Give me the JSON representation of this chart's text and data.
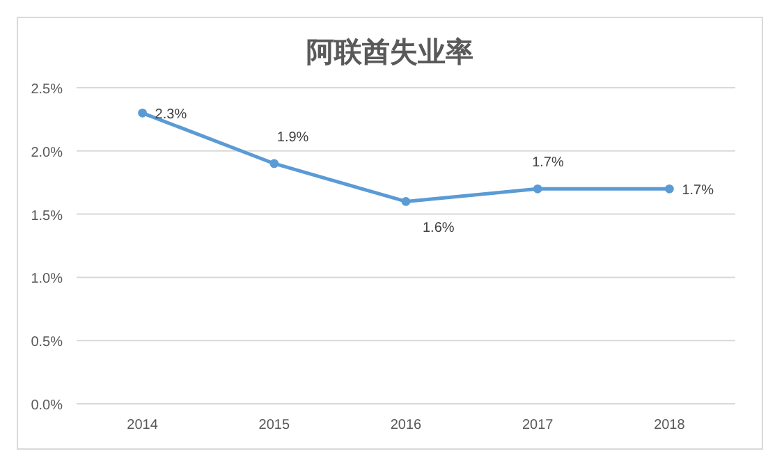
{
  "chart_data": {
    "type": "line",
    "title": "阿联酋失业率",
    "categories": [
      "2014",
      "2015",
      "2016",
      "2017",
      "2018"
    ],
    "series": [
      {
        "color": "#5b9bd5",
        "values": [
          2.3,
          1.9,
          1.6,
          1.7,
          1.7
        ],
        "value_labels": [
          "2.3%",
          "1.9%",
          "1.6%",
          "1.7%",
          "1.7%"
        ]
      }
    ],
    "ylim": [
      0,
      2.5
    ],
    "yticks": [
      {
        "value": 0,
        "label": "0.0%"
      },
      {
        "value": 0.5,
        "label": "0.5%"
      },
      {
        "value": 1,
        "label": "1.0%"
      },
      {
        "value": 1.5,
        "label": "1.5%"
      },
      {
        "value": 2,
        "label": "2.0%"
      },
      {
        "value": 2.5,
        "label": "2.5%"
      }
    ],
    "grid": "y",
    "marker": "circle",
    "line_style": "solid"
  }
}
